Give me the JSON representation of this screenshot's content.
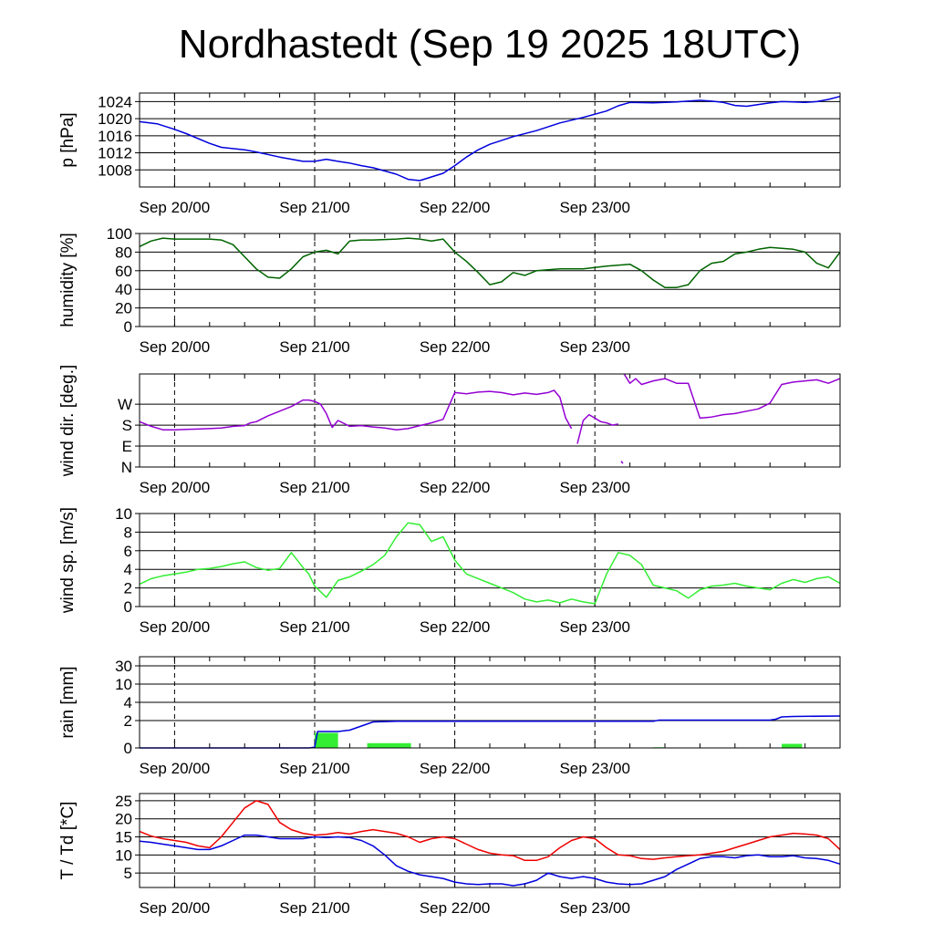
{
  "title": "Nordhastedt (Sep 19 2025 18UTC)",
  "x_tick_labels": [
    "Sep 20/00",
    "Sep 21/00",
    "Sep 22/00",
    "Sep 23/00"
  ],
  "colors": {
    "pressure": "#0000dd",
    "humidity": "#006400",
    "wind_dir": "#9400d3",
    "wind_speed": "#33ee33",
    "rain_total": "#0000dd",
    "rain_bars": "#33ee33",
    "temperature": "#ee0000",
    "dewpoint": "#0000dd"
  },
  "chart_data": [
    {
      "type": "line",
      "ylabel": "p [hPa]",
      "x_unit": "hours since Sep 19 2025 18UTC",
      "ylim": [
        1004,
        1026
      ],
      "yticks": [
        "1008",
        "1012",
        "1016",
        "1020",
        "1024"
      ],
      "grid": "horizontal solid at y ticks, vertical dashed at 00UTC",
      "series": [
        {
          "color_key": "pressure",
          "x": [
            0,
            3,
            6,
            8,
            12,
            14,
            18,
            20,
            24,
            28,
            30,
            32,
            34,
            36,
            38,
            40,
            44,
            46,
            48,
            52,
            54,
            56,
            58,
            60,
            64,
            68,
            72,
            76,
            80,
            82,
            84,
            88,
            92,
            96,
            98,
            100,
            102,
            104,
            106,
            108,
            110,
            112,
            114,
            116,
            118,
            120
          ],
          "y": [
            1019.3,
            1018.8,
            1017.5,
            1016.5,
            1014.2,
            1013.3,
            1012.7,
            1012.2,
            1011.0,
            1010.0,
            1010.0,
            1010.5,
            1010.0,
            1009.6,
            1009.0,
            1008.5,
            1007.0,
            1005.8,
            1005.5,
            1007.2,
            1009.0,
            1011.0,
            1012.7,
            1014.0,
            1015.8,
            1017.2,
            1019.0,
            1020.3,
            1021.8,
            1023.0,
            1023.8,
            1023.7,
            1023.9,
            1024.3,
            1024.1,
            1023.8,
            1023.1,
            1022.9,
            1023.3,
            1023.7,
            1024.0,
            1023.9,
            1023.8,
            1024.0,
            1024.5,
            1025.2
          ]
        }
      ]
    },
    {
      "type": "line",
      "ylabel": "humidity [%]",
      "ylim": [
        0,
        100
      ],
      "yticks": [
        "0",
        "20",
        "40",
        "60",
        "80",
        "100"
      ],
      "series": [
        {
          "color_key": "humidity",
          "x": [
            0,
            2,
            4,
            6,
            8,
            12,
            14,
            16,
            18,
            20,
            22,
            24,
            26,
            28,
            30,
            32,
            34,
            36,
            38,
            40,
            44,
            46,
            48,
            50,
            52,
            54,
            56,
            58,
            60,
            62,
            64,
            66,
            68,
            72,
            76,
            80,
            84,
            86,
            88,
            90,
            92,
            94,
            96,
            98,
            100,
            102,
            104,
            106,
            108,
            110,
            112,
            114,
            116,
            118,
            120
          ],
          "y": [
            86,
            92,
            95,
            94,
            94,
            94,
            93,
            88,
            75,
            62,
            53,
            52,
            62,
            75,
            80,
            82,
            78,
            92,
            93,
            93,
            94,
            95,
            94,
            92,
            94,
            80,
            70,
            58,
            45,
            48,
            58,
            55,
            60,
            62,
            62,
            65,
            67,
            60,
            50,
            42,
            42,
            45,
            60,
            68,
            70,
            78,
            80,
            83,
            85,
            84,
            83,
            80,
            68,
            63,
            80
          ]
        }
      ]
    },
    {
      "type": "line",
      "ylabel": "wind dir. [deg.]",
      "ylim": [
        0,
        400
      ],
      "ytick_values": [
        0,
        90,
        180,
        270
      ],
      "yticks": [
        "N",
        "E",
        "S",
        "W"
      ],
      "series": [
        {
          "color_key": "wind_dir",
          "segments": [
            {
              "x": [
                0,
                2,
                4,
                6,
                8,
                10,
                12,
                14,
                16,
                18,
                19,
                20,
                22,
                24,
                26,
                28,
                29,
                30,
                31,
                32,
                33,
                34,
                36,
                38,
                40,
                42,
                44,
                46,
                48,
                50,
                52,
                54,
                56,
                58,
                60,
                62,
                64,
                66,
                68,
                70,
                71,
                72,
                73,
                74
              ],
              "y": [
                195,
                175,
                160,
                160,
                162,
                163,
                165,
                168,
                175,
                178,
                190,
                195,
                220,
                240,
                260,
                288,
                288,
                282,
                270,
                230,
                170,
                200,
                175,
                178,
                172,
                168,
                160,
                165,
                178,
                190,
                205,
                320,
                315,
                322,
                325,
                320,
                310,
                318,
                312,
                320,
                330,
                300,
                210,
                165
              ]
            },
            {
              "x": [
                75,
                76,
                77,
                78,
                79,
                80,
                81,
                82
              ],
              "y": [
                100,
                200,
                225,
                210,
                195,
                190,
                180,
                185
              ]
            },
            {
              "x": [
                82.5,
                82.8
              ],
              "y": [
                25,
                15
              ]
            },
            {
              "x": [
                83,
                84,
                85,
                86,
                88,
                90,
                92,
                94,
                96,
                98,
                100,
                102,
                104,
                106,
                108,
                110,
                112,
                114,
                116,
                118,
                120
              ],
              "y": [
                400,
                360,
                380,
                355,
                370,
                380,
                360,
                360,
                210,
                215,
                225,
                230,
                240,
                250,
                275,
                355,
                365,
                370,
                375,
                360,
                380
              ]
            }
          ]
        }
      ]
    },
    {
      "type": "line",
      "ylabel": "wind sp. [m/s]",
      "ylim": [
        0,
        10
      ],
      "yticks": [
        "0",
        "2",
        "4",
        "6",
        "8",
        "10"
      ],
      "series": [
        {
          "color_key": "wind_speed",
          "x": [
            0,
            2,
            4,
            6,
            8,
            10,
            12,
            14,
            16,
            18,
            20,
            22,
            24,
            26,
            28,
            29,
            30,
            32,
            34,
            36,
            38,
            40,
            42,
            44,
            46,
            48,
            50,
            52,
            54,
            56,
            58,
            60,
            62,
            64,
            66,
            68,
            70,
            72,
            74,
            76,
            78,
            80,
            82,
            84,
            86,
            88,
            90,
            92,
            94,
            96,
            98,
            100,
            102,
            104,
            106,
            108,
            110,
            112,
            114,
            116,
            118,
            120
          ],
          "y": [
            2.4,
            3.0,
            3.3,
            3.5,
            3.7,
            4.0,
            4.1,
            4.3,
            4.6,
            4.8,
            4.2,
            3.9,
            4.1,
            5.8,
            4.2,
            3.5,
            2.2,
            1.0,
            2.8,
            3.2,
            3.8,
            4.5,
            5.5,
            7.5,
            9.0,
            8.8,
            7.0,
            7.5,
            5.0,
            3.5,
            3.0,
            2.5,
            2.0,
            1.5,
            0.8,
            0.5,
            0.7,
            0.4,
            0.8,
            0.5,
            0.3,
            3.5,
            5.8,
            5.5,
            4.5,
            2.3,
            2.0,
            1.7,
            0.9,
            1.8,
            2.2,
            2.3,
            2.5,
            2.2,
            2.0,
            1.8,
            2.5,
            2.9,
            2.6,
            3.0,
            3.2,
            2.5
          ]
        }
      ]
    },
    {
      "type": "bar+line",
      "ylabel": "rain [mm]",
      "scale": "piecewise (0-2 linear, then 4, 10, 30)",
      "ytick_values": [
        0,
        2,
        4,
        10,
        30
      ],
      "yticks": [
        "0",
        "2",
        "4",
        "10",
        "30"
      ],
      "bars": {
        "color_key": "rain_bars",
        "x_start": [
          30,
          39,
          88,
          110
        ],
        "x_end": [
          34,
          46.5,
          90,
          113.5
        ],
        "values": [
          1.1,
          0.35,
          0.05,
          0.3
        ]
      },
      "series": [
        {
          "color_key": "rain_total",
          "name": "cumulative",
          "x": [
            0,
            29,
            30,
            30.5,
            34,
            35,
            36,
            38,
            40,
            44,
            60,
            80,
            88,
            89,
            100,
            108,
            109,
            110,
            112,
            120
          ],
          "y": [
            0,
            0,
            0.05,
            1.2,
            1.2,
            1.25,
            1.3,
            1.6,
            1.9,
            1.95,
            1.95,
            1.95,
            1.95,
            2.05,
            2.05,
            2.05,
            2.15,
            2.4,
            2.45,
            2.5
          ]
        }
      ]
    },
    {
      "type": "line",
      "ylabel": "T / Td [*C]",
      "ylim": [
        1,
        27
      ],
      "yticks": [
        "5",
        "10",
        "15",
        "20",
        "25"
      ],
      "series": [
        {
          "color_key": "temperature",
          "name": "T",
          "x": [
            0,
            2,
            4,
            6,
            8,
            10,
            12,
            14,
            16,
            18,
            20,
            22,
            24,
            26,
            28,
            30,
            32,
            34,
            36,
            38,
            40,
            42,
            44,
            46,
            48,
            50,
            52,
            54,
            56,
            58,
            60,
            62,
            64,
            66,
            68,
            70,
            72,
            74,
            76,
            78,
            80,
            82,
            84,
            86,
            88,
            90,
            92,
            94,
            96,
            98,
            100,
            102,
            104,
            106,
            108,
            110,
            112,
            114,
            116,
            118,
            120
          ],
          "y": [
            16.5,
            15.2,
            14.5,
            14.0,
            13.5,
            12.5,
            12.0,
            15.0,
            19.0,
            23.0,
            25.0,
            24.0,
            19.0,
            17.0,
            16.0,
            15.5,
            15.7,
            16.2,
            15.8,
            16.5,
            17.0,
            16.5,
            16.0,
            15.0,
            13.5,
            14.5,
            15.0,
            14.5,
            13.0,
            11.5,
            10.5,
            10.0,
            9.8,
            8.5,
            8.5,
            9.5,
            12.0,
            14.0,
            15.0,
            14.5,
            12.0,
            10.0,
            9.8,
            9.0,
            8.8,
            9.2,
            9.5,
            9.8,
            10.0,
            10.5,
            11.0,
            12.0,
            13.0,
            14.0,
            15.0,
            15.5,
            16.0,
            15.8,
            15.5,
            14.5,
            11.5
          ]
        },
        {
          "color_key": "dewpoint",
          "name": "Td",
          "x": [
            0,
            2,
            4,
            6,
            8,
            10,
            12,
            14,
            16,
            18,
            20,
            22,
            24,
            26,
            28,
            30,
            32,
            34,
            36,
            38,
            40,
            42,
            44,
            46,
            48,
            50,
            52,
            54,
            56,
            58,
            60,
            62,
            64,
            66,
            68,
            70,
            72,
            74,
            76,
            78,
            80,
            82,
            84,
            86,
            88,
            90,
            92,
            94,
            96,
            98,
            100,
            102,
            104,
            106,
            108,
            110,
            112,
            114,
            116,
            118,
            120
          ],
          "y": [
            13.8,
            13.5,
            13.0,
            12.5,
            12.0,
            11.5,
            11.5,
            12.5,
            14.0,
            15.5,
            15.5,
            15.0,
            14.5,
            14.5,
            14.5,
            15.0,
            14.8,
            15.0,
            14.8,
            14.0,
            12.5,
            10.0,
            7.0,
            5.5,
            4.5,
            4.0,
            3.5,
            2.5,
            2.0,
            1.8,
            2.0,
            2.0,
            1.5,
            2.0,
            3.0,
            5.0,
            4.0,
            3.5,
            4.0,
            3.5,
            2.5,
            2.0,
            1.8,
            2.0,
            3.0,
            4.0,
            6.0,
            7.5,
            9.0,
            9.5,
            9.5,
            9.2,
            9.8,
            10.0,
            9.5,
            9.5,
            9.8,
            9.2,
            9.0,
            8.5,
            7.5
          ]
        }
      ]
    }
  ]
}
